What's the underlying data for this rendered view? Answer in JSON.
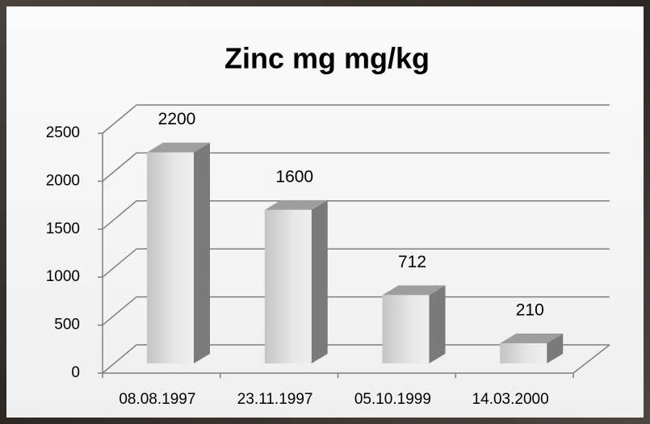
{
  "chart_data": {
    "type": "bar",
    "title": "Zinc mg mg/kg",
    "categories": [
      "08.08.1997",
      "23.11.1997",
      "05.10.1999",
      "14.03.2000"
    ],
    "values": [
      2200,
      1600,
      712,
      210
    ],
    "color": "#d9d9d9",
    "ylim": [
      0,
      2500
    ],
    "yticks": [
      0,
      500,
      1000,
      1500,
      2000,
      2500
    ],
    "grid": true
  }
}
